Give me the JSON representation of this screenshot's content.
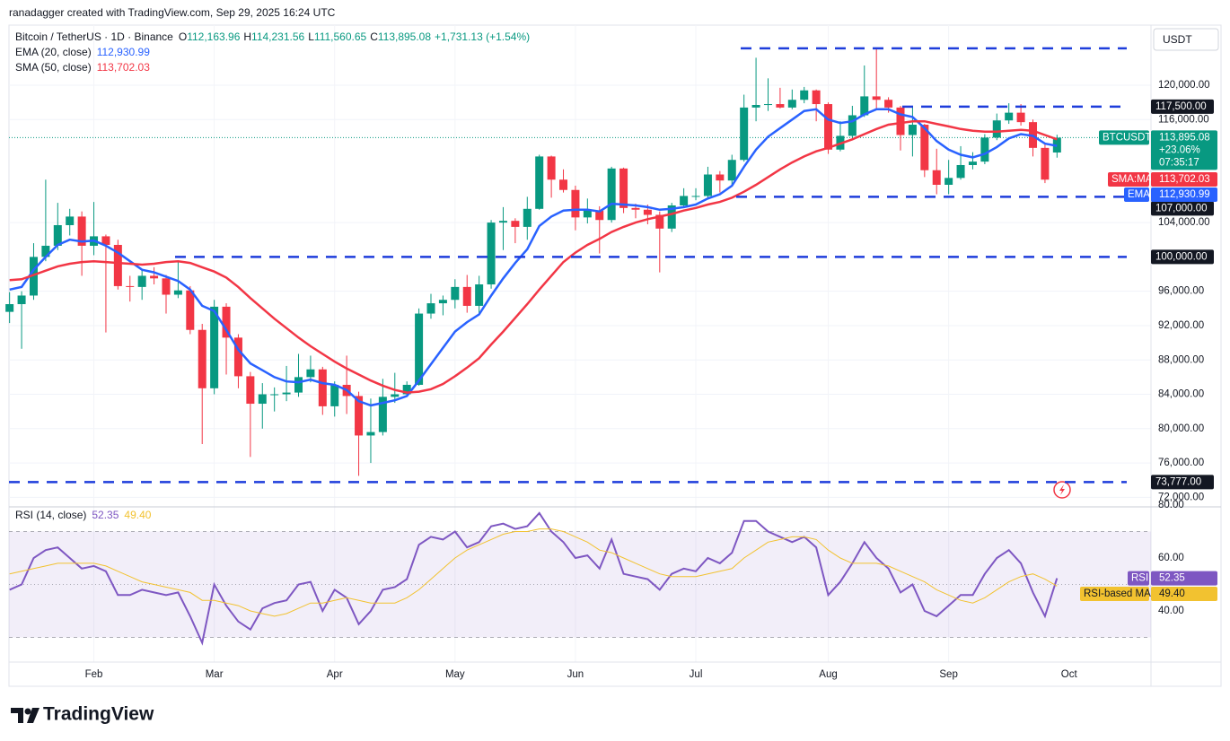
{
  "header": {
    "credit": "ranadagger created with TradingView.com, Sep 29, 2025 16:24 UTC",
    "symbol": "Bitcoin / TetherUS · 1D · Binance",
    "ohlc": [
      {
        "key": "O",
        "value": "112,163.96"
      },
      {
        "key": "H",
        "value": "114,231.56"
      },
      {
        "key": "L",
        "value": "111,560.65"
      },
      {
        "key": "C",
        "value": "113,895.08"
      }
    ],
    "change": "+1,731.13 (+1.54%)",
    "currency": "USDT"
  },
  "footer": {
    "logo": "TradingView"
  },
  "chart_data": [
    {
      "type": "candlestick",
      "up_color": "#089981",
      "down_color": "#f23645",
      "level_color": "#1e3ddb",
      "categories": [
        null,
        null,
        null,
        null,
        null,
        null,
        null,
        "Feb",
        null,
        null,
        null,
        null,
        null,
        null,
        null,
        null,
        null,
        "Mar",
        null,
        null,
        null,
        null,
        null,
        null,
        null,
        null,
        null,
        "Apr",
        null,
        null,
        null,
        null,
        null,
        null,
        null,
        null,
        null,
        "May",
        null,
        null,
        null,
        null,
        null,
        null,
        null,
        null,
        null,
        "Jun",
        null,
        null,
        null,
        null,
        null,
        null,
        null,
        null,
        null,
        "Jul",
        null,
        null,
        null,
        null,
        null,
        null,
        null,
        null,
        null,
        null,
        "Aug",
        null,
        null,
        null,
        null,
        null,
        null,
        null,
        null,
        null,
        "Sep",
        null,
        null,
        null,
        null,
        null,
        null,
        null,
        null,
        null
      ],
      "future_categories": [
        "Oct"
      ],
      "candles": [
        [
          93600,
          95900,
          92300,
          94500
        ],
        [
          94500,
          96000,
          89300,
          95500
        ],
        [
          95500,
          101600,
          95000,
          100000
        ],
        [
          100000,
          109000,
          99500,
          101300
        ],
        [
          101300,
          106300,
          100800,
          103700
        ],
        [
          103700,
          105600,
          102500,
          104700
        ],
        [
          104700,
          105300,
          97800,
          101300
        ],
        [
          101300,
          106400,
          100200,
          102400
        ],
        [
          102400,
          102600,
          91200,
          101400
        ],
        [
          101400,
          102000,
          96200,
          96600
        ],
        [
          96600,
          97800,
          94800,
          96500
        ],
        [
          96500,
          98500,
          95000,
          97800
        ],
        [
          97800,
          98800,
          96800,
          97500
        ],
        [
          97500,
          97900,
          93400,
          95600
        ],
        [
          95600,
          99400,
          95200,
          96100
        ],
        [
          96100,
          96600,
          91000,
          91500
        ],
        [
          91500,
          92200,
          78200,
          84700
        ],
        [
          84700,
          95000,
          84000,
          94200
        ],
        [
          94200,
          94600,
          86300,
          90600
        ],
        [
          90600,
          91000,
          84700,
          86100
        ],
        [
          86100,
          86600,
          76700,
          82900
        ],
        [
          82900,
          85300,
          80000,
          84000
        ],
        [
          84000,
          84800,
          82000,
          84000
        ],
        [
          84000,
          87300,
          83200,
          84200
        ],
        [
          84200,
          88700,
          83700,
          86000
        ],
        [
          86000,
          88500,
          85400,
          86900
        ],
        [
          86900,
          87200,
          81600,
          82600
        ],
        [
          82600,
          85500,
          81400,
          85100
        ],
        [
          85100,
          88500,
          81700,
          83800
        ],
        [
          83800,
          84300,
          74500,
          79200
        ],
        [
          79200,
          83500,
          76000,
          79600
        ],
        [
          79600,
          85800,
          79200,
          83700
        ],
        [
          83700,
          86500,
          83000,
          84000
        ],
        [
          84000,
          85500,
          83900,
          85100
        ],
        [
          85100,
          94000,
          85000,
          93400
        ],
        [
          93400,
          95700,
          92800,
          94600
        ],
        [
          94600,
          95500,
          93200,
          95000
        ],
        [
          95000,
          97400,
          94000,
          96500
        ],
        [
          96500,
          97900,
          93500,
          94300
        ],
        [
          94300,
          97800,
          93400,
          96800
        ],
        [
          96800,
          104300,
          96300,
          104000
        ],
        [
          104000,
          105800,
          100800,
          104200
        ],
        [
          104200,
          104500,
          101600,
          103500
        ],
        [
          103500,
          107000,
          102000,
          105600
        ],
        [
          105600,
          111900,
          105500,
          111700
        ],
        [
          111700,
          111800,
          106900,
          109000
        ],
        [
          109000,
          110200,
          107500,
          107800
        ],
        [
          107800,
          108300,
          103100,
          104600
        ],
        [
          104600,
          106800,
          103900,
          105400
        ],
        [
          105400,
          105900,
          100400,
          104300
        ],
        [
          104300,
          110500,
          104000,
          110300
        ],
        [
          110300,
          110400,
          105100,
          105700
        ],
        [
          105700,
          106200,
          104500,
          105500
        ],
        [
          105500,
          106100,
          103800,
          104900
        ],
        [
          104900,
          105300,
          98200,
          103300
        ],
        [
          103300,
          106300,
          102900,
          106000
        ],
        [
          106000,
          108000,
          105900,
          107100
        ],
        [
          107100,
          108000,
          106600,
          107100
        ],
        [
          107100,
          110500,
          106900,
          109600
        ],
        [
          109600,
          110000,
          107500,
          108900
        ],
        [
          108900,
          111900,
          108200,
          111300
        ],
        [
          111300,
          118900,
          111100,
          117400
        ],
        [
          117400,
          123200,
          115800,
          117700
        ],
        [
          117700,
          120800,
          117000,
          117800
        ],
        [
          117800,
          119700,
          117300,
          117400
        ],
        [
          117400,
          119500,
          117200,
          118300
        ],
        [
          118300,
          119800,
          117900,
          119400
        ],
        [
          119400,
          119500,
          115800,
          117800
        ],
        [
          117800,
          118000,
          112000,
          112500
        ],
        [
          112500,
          115800,
          112300,
          114100
        ],
        [
          114100,
          117600,
          113800,
          116500
        ],
        [
          116500,
          122300,
          116300,
          118700
        ],
        [
          118700,
          124200,
          117200,
          118300
        ],
        [
          118300,
          118600,
          116800,
          117400
        ],
        [
          117400,
          117600,
          112400,
          114200
        ],
        [
          114200,
          117400,
          111700,
          115400
        ],
        [
          115400,
          115500,
          109300,
          110100
        ],
        [
          110100,
          112600,
          107300,
          108400
        ],
        [
          108400,
          111300,
          107300,
          109200
        ],
        [
          109200,
          112900,
          109000,
          110700
        ],
        [
          110700,
          112200,
          110200,
          111100
        ],
        [
          111100,
          114300,
          110800,
          113900
        ],
        [
          113900,
          116700,
          113600,
          115900
        ],
        [
          115900,
          117900,
          115500,
          116800
        ],
        [
          116800,
          117800,
          115300,
          115700
        ],
        [
          115700,
          116000,
          111700,
          112700
        ],
        [
          112700,
          113300,
          108600,
          109000
        ],
        [
          112163.96,
          114231.56,
          111560.65,
          113895.08
        ]
      ],
      "series": [
        {
          "name": "EMA (20, close)",
          "color": "#2962ff",
          "badge_label": "EMA",
          "last_label": "112,930.99",
          "values": [
            96200,
            96500,
            98500,
            100000,
            101400,
            102000,
            101800,
            101900,
            101300,
            100500,
            99500,
            98500,
            98200,
            97700,
            97200,
            96200,
            94300,
            93700,
            91500,
            89200,
            87600,
            86800,
            86000,
            85500,
            85400,
            85700,
            85300,
            85100,
            84500,
            83200,
            82700,
            83000,
            83300,
            83800,
            85600,
            87500,
            89400,
            91300,
            92400,
            93300,
            95500,
            97500,
            99300,
            100900,
            103600,
            104700,
            105400,
            105500,
            105500,
            105300,
            106200,
            106100,
            106000,
            105800,
            105500,
            105600,
            105800,
            106100,
            106800,
            107300,
            108300,
            110500,
            112500,
            114000,
            115000,
            116000,
            117000,
            117200,
            116000,
            115600,
            115800,
            116600,
            117200,
            117200,
            116600,
            116300,
            115000,
            113500,
            112500,
            111900,
            111600,
            112000,
            112800,
            113800,
            114300,
            114100,
            113200,
            112930.99
          ]
        },
        {
          "name": "SMA (50, close)",
          "color": "#f23645",
          "badge_label": "SMA:MA",
          "last_label": "113,702.03",
          "values": [
            97300,
            97400,
            97900,
            98400,
            98900,
            99200,
            99400,
            99500,
            99400,
            99300,
            99200,
            99100,
            99200,
            99400,
            99500,
            99300,
            98800,
            98300,
            97600,
            96500,
            95200,
            94000,
            92800,
            91700,
            90600,
            89600,
            88700,
            87800,
            87000,
            86300,
            85600,
            85000,
            84500,
            84200,
            84300,
            84600,
            85200,
            86100,
            87100,
            88200,
            89800,
            91300,
            92900,
            94500,
            96200,
            97800,
            99400,
            100500,
            101400,
            102100,
            102900,
            103500,
            104000,
            104400,
            104700,
            105000,
            105400,
            105700,
            106100,
            106400,
            106900,
            107600,
            108400,
            109300,
            110200,
            111000,
            111700,
            112300,
            112700,
            113200,
            113700,
            114300,
            114900,
            115400,
            115600,
            115800,
            115800,
            115500,
            115200,
            114900,
            114700,
            114600,
            114600,
            114700,
            114800,
            114700,
            114200,
            113702.03
          ]
        }
      ],
      "price_badge": {
        "label": "BTCUSDT",
        "lines": [
          "113,895.08",
          "+23.06%",
          "07:35:17"
        ]
      },
      "levels": [
        {
          "value": 124300,
          "label": null
        },
        {
          "value": 117500,
          "label": "117,500.00"
        },
        {
          "value": 107000,
          "label": "107,000.00"
        },
        {
          "value": 100000,
          "label": "100,000.00"
        },
        {
          "value": 73777,
          "label": "73,777.00"
        }
      ],
      "ylim": [
        71200,
        127000
      ],
      "yticks": [
        {
          "value": 72000,
          "label": "72,000.00"
        },
        {
          "value": 76000,
          "label": "76,000.00"
        },
        {
          "value": 80000,
          "label": "80,000.00"
        },
        {
          "value": 84000,
          "label": "84,000.00"
        },
        {
          "value": 88000,
          "label": "88,000.00"
        },
        {
          "value": 92000,
          "label": "92,000.00"
        },
        {
          "value": 96000,
          "label": "96,000.00"
        },
        {
          "value": 104000,
          "label": "104,000.00"
        },
        {
          "value": 116000,
          "label": "116,000.00"
        },
        {
          "value": 120000,
          "label": "120,000.00"
        }
      ]
    },
    {
      "type": "line",
      "series": [
        {
          "name": "RSI (14, close)",
          "color": "#7e57c2",
          "badge_label": "RSI",
          "last_label": "52.35",
          "values": [
            48,
            50,
            60,
            63,
            64,
            60,
            56,
            57,
            55,
            46,
            46,
            48,
            47,
            46,
            47,
            38,
            28,
            50,
            42,
            36,
            33,
            41,
            43,
            44,
            50,
            51,
            40,
            48,
            45,
            35,
            40,
            48,
            49,
            52,
            65,
            68,
            67,
            70,
            64,
            66,
            72,
            73,
            71,
            72,
            77,
            70,
            66,
            60,
            61,
            56,
            67,
            54,
            53,
            52,
            48,
            54,
            56,
            55,
            60,
            58,
            62,
            74,
            74,
            70,
            68,
            66,
            68,
            64,
            46,
            51,
            58,
            66,
            60,
            56,
            47,
            50,
            40,
            38,
            42,
            46,
            46,
            54,
            60,
            63,
            58,
            47,
            38,
            52.35
          ]
        },
        {
          "name": "RSI-based MA",
          "color": "#f2c230",
          "last_label": "49.40",
          "values": [
            54,
            55,
            56,
            57,
            58,
            58,
            58,
            58,
            57,
            55,
            53,
            51,
            50,
            49,
            48,
            47,
            44,
            44,
            43,
            42,
            40,
            39,
            38,
            39,
            41,
            43,
            43,
            44,
            45,
            44,
            43,
            43,
            43,
            45,
            48,
            52,
            56,
            60,
            63,
            65,
            67,
            69,
            70,
            70,
            71,
            71,
            70,
            68,
            66,
            63,
            62,
            60,
            58,
            56,
            54,
            53,
            53,
            53,
            54,
            55,
            56,
            60,
            63,
            66,
            67,
            68,
            68,
            67,
            63,
            60,
            58,
            58,
            58,
            57,
            55,
            53,
            51,
            48,
            46,
            44,
            43,
            45,
            48,
            51,
            53,
            54,
            52,
            49.4
          ]
        }
      ],
      "bands": [
        70,
        50,
        30
      ],
      "ylim": [
        20.7,
        80
      ],
      "yticks": [
        {
          "value": 80,
          "label": "80.00"
        },
        {
          "value": 60,
          "label": "60.00"
        },
        {
          "value": 40,
          "label": "40.00"
        }
      ]
    }
  ]
}
